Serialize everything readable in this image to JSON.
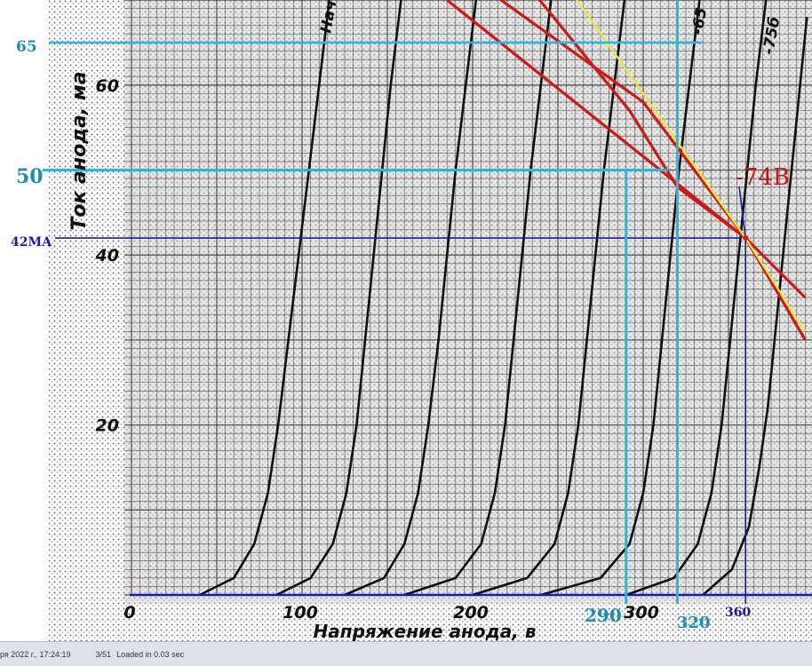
{
  "colors": {
    "paper": "#cfcfcf",
    "grid": "#2a2a2a",
    "curve": "#101010",
    "red": "#cc1a1a",
    "yellow": "#e8e83a",
    "cyan": "#2ab8d8",
    "navy": "#1a1aa8",
    "annot_cyan_text": "#1a8fb0",
    "annot_navy_text": "#1a1aa8",
    "annot_red_text": "#c01818",
    "statusbar_bg": "#dfe3e8"
  },
  "chart_data": {
    "type": "line",
    "title": "",
    "xlabel": "Напряжение анода, в",
    "ylabel": "Ток анода, ма",
    "xlim": [
      -5,
      395
    ],
    "ylim": [
      0,
      70
    ],
    "grid": true,
    "x_ticks": [
      0,
      100,
      200,
      300
    ],
    "y_ticks": [
      20,
      40,
      60
    ],
    "x_tick_labels": [
      "0",
      "100",
      "200",
      "300"
    ],
    "y_tick_labels": [
      "20",
      "40",
      "60"
    ],
    "series": [
      {
        "name": "",
        "points": [
          [
            40,
            0
          ],
          [
            60,
            2
          ],
          [
            72,
            6
          ],
          [
            80,
            12
          ],
          [
            86,
            20
          ],
          [
            92,
            30
          ],
          [
            98,
            40
          ],
          [
            104,
            50
          ],
          [
            110,
            60
          ],
          [
            116,
            70
          ]
        ]
      },
      {
        "name": "",
        "points": [
          [
            85,
            0
          ],
          [
            105,
            2
          ],
          [
            118,
            6
          ],
          [
            126,
            12
          ],
          [
            132,
            20
          ],
          [
            137,
            30
          ],
          [
            142,
            40
          ],
          [
            147,
            50
          ],
          [
            152,
            60
          ],
          [
            158,
            70
          ]
        ]
      },
      {
        "name": "Нач",
        "points": [
          [
            125,
            0
          ],
          [
            148,
            2
          ],
          [
            160,
            6
          ],
          [
            168,
            12
          ],
          [
            174,
            20
          ],
          [
            180,
            30
          ],
          [
            185,
            40
          ],
          [
            190,
            50
          ],
          [
            196,
            60
          ],
          [
            202,
            70
          ]
        ]
      },
      {
        "name": "",
        "points": [
          [
            160,
            0
          ],
          [
            190,
            2
          ],
          [
            205,
            6
          ],
          [
            213,
            12
          ],
          [
            219,
            20
          ],
          [
            224,
            30
          ],
          [
            229,
            40
          ],
          [
            234,
            50
          ],
          [
            240,
            60
          ],
          [
            246,
            70
          ]
        ]
      },
      {
        "name": "",
        "points": [
          [
            200,
            0
          ],
          [
            232,
            2
          ],
          [
            248,
            6
          ],
          [
            256,
            12
          ],
          [
            262,
            20
          ],
          [
            267,
            30
          ],
          [
            272,
            40
          ],
          [
            277,
            50
          ],
          [
            283,
            60
          ],
          [
            289,
            70
          ]
        ]
      },
      {
        "name": "",
        "points": [
          [
            240,
            0
          ],
          [
            275,
            2
          ],
          [
            292,
            6
          ],
          [
            300,
            12
          ],
          [
            306,
            20
          ],
          [
            311,
            30
          ],
          [
            316,
            40
          ],
          [
            321,
            50
          ],
          [
            327,
            60
          ],
          [
            333,
            70
          ]
        ]
      },
      {
        "name": "-65",
        "points": [
          [
            290,
            0
          ],
          [
            318,
            2
          ],
          [
            332,
            6
          ],
          [
            340,
            12
          ],
          [
            346,
            20
          ],
          [
            351,
            30
          ],
          [
            356,
            40
          ],
          [
            361,
            50
          ],
          [
            366,
            60
          ],
          [
            372,
            70
          ]
        ]
      },
      {
        "name": "-75б",
        "points": [
          [
            335,
            0
          ],
          [
            352,
            3
          ],
          [
            362,
            8
          ],
          [
            368,
            15
          ],
          [
            373,
            22
          ],
          [
            378,
            32
          ],
          [
            382,
            40
          ],
          [
            387,
            50
          ],
          [
            392,
            60
          ],
          [
            396,
            68
          ]
        ]
      }
    ],
    "load_lines": [
      {
        "color": "red",
        "points": [
          [
            185,
            70
          ],
          [
            360,
            42
          ],
          [
            395,
            35
          ]
        ]
      },
      {
        "color": "red",
        "points": [
          [
            175,
            76
          ],
          [
            300,
            58
          ],
          [
            360,
            42
          ],
          [
            395,
            30
          ]
        ]
      },
      {
        "color": "red",
        "points": [
          [
            215,
            76
          ],
          [
            292,
            57
          ],
          [
            320,
            48
          ],
          [
            360,
            42
          ]
        ]
      },
      {
        "color": "yellow",
        "points": [
          [
            240,
            76
          ],
          [
            360,
            42
          ],
          [
            395,
            31
          ]
        ]
      }
    ],
    "operating_points": [
      {
        "label": "-74В",
        "x": 360,
        "y": 42
      }
    ],
    "annotations": {
      "h_65": {
        "label": "65",
        "y": 65
      },
      "h_50": {
        "label": "50",
        "y": 50
      },
      "h_42": {
        "label": "42МА",
        "y": 42
      },
      "v_290": {
        "label": "290",
        "x": 290
      },
      "v_320": {
        "label": "320",
        "x": 320
      },
      "v_360": {
        "label": "360",
        "x": 360
      },
      "tag_74": {
        "label": "-74В"
      }
    }
  },
  "status_bar": {
    "date_text": "ря 2022 г., 17:24:19",
    "index_text": "3/51",
    "loaded_text": "Loaded in 0.03 sec"
  }
}
